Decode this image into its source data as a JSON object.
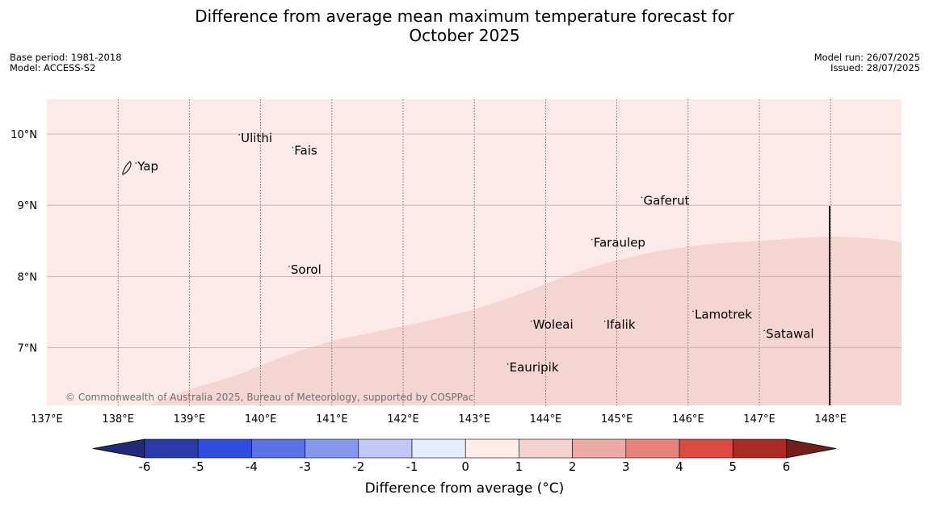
{
  "title": {
    "line1": "Difference from average mean maximum temperature forecast for",
    "line2": "October 2025"
  },
  "meta": {
    "base_period": "Base period: 1981-2018",
    "model": "Model: ACCESS-S2",
    "model_run": "Model run: 26/07/2025",
    "issued": "Issued: 28/07/2025"
  },
  "map": {
    "lon_range": [
      137,
      149
    ],
    "lat_range": [
      6.2,
      10.5
    ],
    "background_anomaly_color": "#fbeae8",
    "warm_anomaly_color": "#f5d5d2",
    "lon_ticks": [
      "137°E",
      "138°E",
      "139°E",
      "140°E",
      "141°E",
      "142°E",
      "143°E",
      "144°E",
      "145°E",
      "146°E",
      "147°E",
      "148°E"
    ],
    "lat_ticks": [
      "10°N",
      "9°N",
      "8°N",
      "7°N"
    ],
    "places": [
      {
        "name": "Yap",
        "lon": 138.25,
        "lat": 9.5
      },
      {
        "name": "Ulithi",
        "lon": 139.7,
        "lat": 9.9
      },
      {
        "name": "Fais",
        "lon": 140.45,
        "lat": 9.72
      },
      {
        "name": "Gaferut",
        "lon": 145.35,
        "lat": 9.02
      },
      {
        "name": "Faraulep",
        "lon": 144.65,
        "lat": 8.43
      },
      {
        "name": "Sorol",
        "lon": 140.4,
        "lat": 8.05
      },
      {
        "name": "Woleai",
        "lon": 143.8,
        "lat": 7.28
      },
      {
        "name": "Ifalik",
        "lon": 144.83,
        "lat": 7.28
      },
      {
        "name": "Lamotrek",
        "lon": 146.07,
        "lat": 7.42
      },
      {
        "name": "Satawal",
        "lon": 147.07,
        "lat": 7.15
      },
      {
        "name": "Eauripik",
        "lon": 143.47,
        "lat": 6.68
      }
    ],
    "copyright": "© Commonwealth of Australia 2025, Bureau of Meteorology, supported by COSPPac"
  },
  "colorbar": {
    "label": "Difference from average (°C)",
    "ticks": [
      "-6",
      "-5",
      "-4",
      "-3",
      "-2",
      "-1",
      "0",
      "1",
      "2",
      "3",
      "4",
      "5",
      "6"
    ],
    "colors": [
      "#2a3aa8",
      "#2f4ee0",
      "#5a72e6",
      "#8797ec",
      "#c1c8f5",
      "#e8ebfb",
      "#fdeceb",
      "#f5d2cf",
      "#eeaba6",
      "#e8837b",
      "#dc4b3f",
      "#ab2a24"
    ],
    "low_extend_color": "#1f2a78",
    "high_extend_color": "#70201b"
  }
}
